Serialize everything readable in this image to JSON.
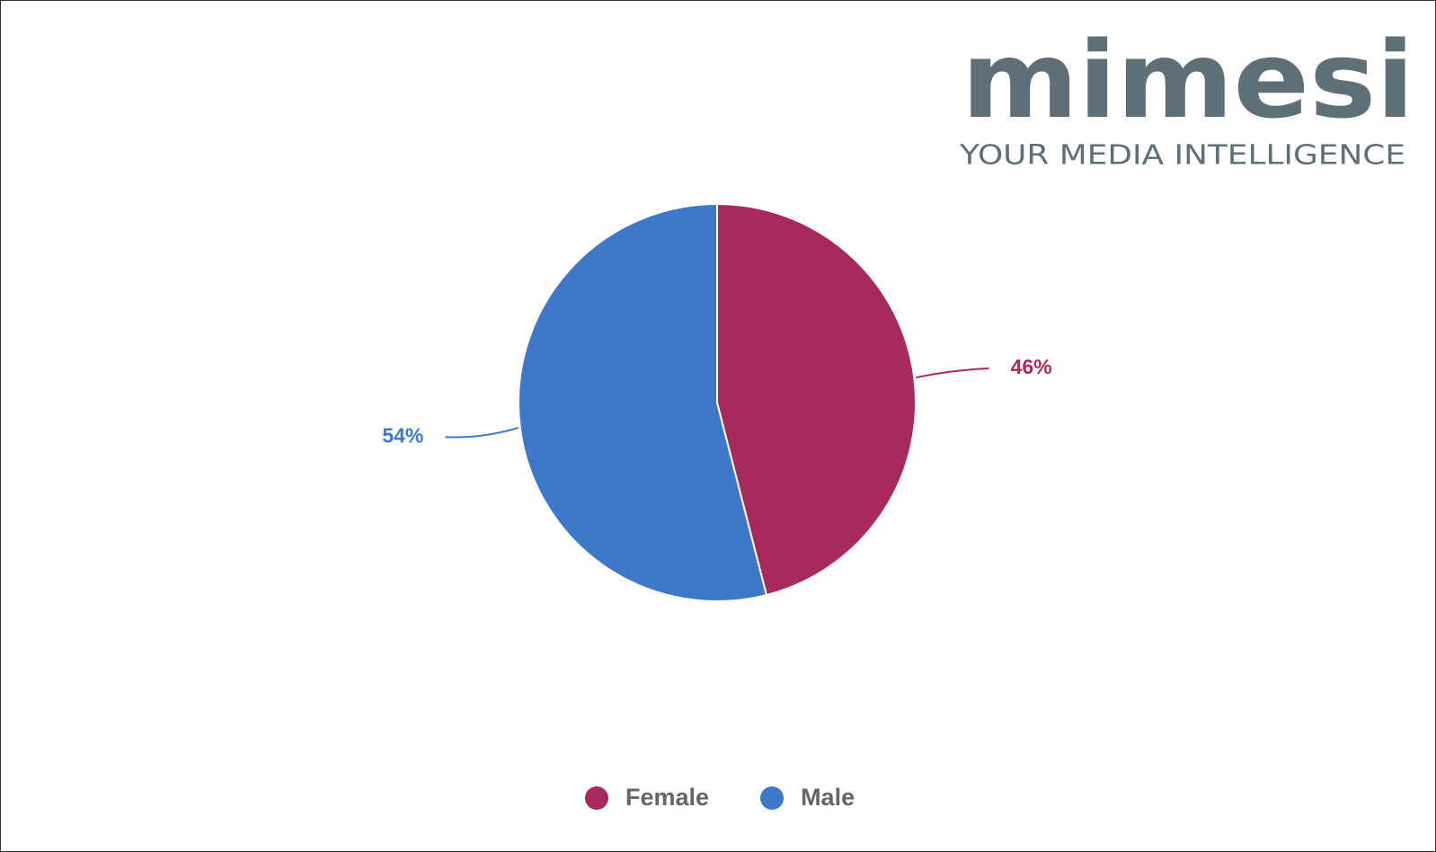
{
  "logo": {
    "name": "mimesi",
    "tagline": "YOUR MEDIA INTELLIGENCE"
  },
  "chart_data": {
    "type": "pie",
    "categories": [
      "Female",
      "Male"
    ],
    "values": [
      46,
      54
    ],
    "value_labels": [
      "46%",
      "54%"
    ],
    "colors": [
      "#a62b5c",
      "#3d78c9"
    ],
    "legend": "bottom"
  }
}
